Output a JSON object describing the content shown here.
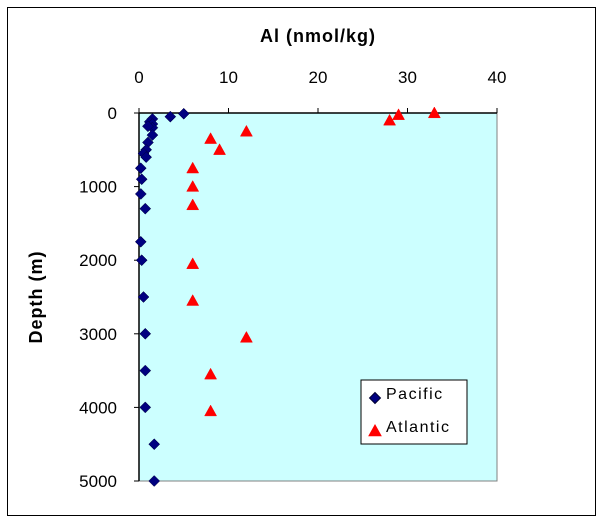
{
  "chart_data": {
    "type": "scatter",
    "title": "",
    "xlabel": "Al (nmol/kg)",
    "ylabel": "Depth (m)",
    "xlim": [
      0,
      40
    ],
    "ylim": [
      0,
      5000
    ],
    "y_inverted": true,
    "x_axis_position": "top",
    "x_ticks": [
      0,
      10,
      20,
      30,
      40
    ],
    "y_ticks": [
      0,
      1000,
      2000,
      3000,
      4000,
      5000
    ],
    "grid": false,
    "legend_position": "bottom-right",
    "plot_background": "#ccffff",
    "series": [
      {
        "name": "Pacific",
        "marker": "diamond",
        "color": "#000080",
        "points": [
          {
            "x": 5,
            "y": 10
          },
          {
            "x": 3.5,
            "y": 50
          },
          {
            "x": 1.5,
            "y": 80
          },
          {
            "x": 1.2,
            "y": 120
          },
          {
            "x": 1.5,
            "y": 150
          },
          {
            "x": 1.5,
            "y": 200
          },
          {
            "x": 1,
            "y": 180
          },
          {
            "x": 1.5,
            "y": 300
          },
          {
            "x": 1,
            "y": 400
          },
          {
            "x": 0.8,
            "y": 500
          },
          {
            "x": 0.5,
            "y": 550
          },
          {
            "x": 0.8,
            "y": 600
          },
          {
            "x": 0.2,
            "y": 750
          },
          {
            "x": 0.3,
            "y": 900
          },
          {
            "x": 0.2,
            "y": 1100
          },
          {
            "x": 0.7,
            "y": 1300
          },
          {
            "x": 0.2,
            "y": 1750
          },
          {
            "x": 0.3,
            "y": 2000
          },
          {
            "x": 0.5,
            "y": 2500
          },
          {
            "x": 0.7,
            "y": 3000
          },
          {
            "x": 0.7,
            "y": 3500
          },
          {
            "x": 0.7,
            "y": 4000
          },
          {
            "x": 1.7,
            "y": 4500
          },
          {
            "x": 1.7,
            "y": 5000
          }
        ]
      },
      {
        "name": "Atlantic",
        "marker": "triangle",
        "color": "#ff0000",
        "points": [
          {
            "x": 33,
            "y": 0
          },
          {
            "x": 29,
            "y": 25
          },
          {
            "x": 28,
            "y": 100
          },
          {
            "x": 12,
            "y": 250
          },
          {
            "x": 8,
            "y": 350
          },
          {
            "x": 9,
            "y": 500
          },
          {
            "x": 6,
            "y": 750
          },
          {
            "x": 6,
            "y": 1000
          },
          {
            "x": 6,
            "y": 1250
          },
          {
            "x": 6,
            "y": 2050
          },
          {
            "x": 6,
            "y": 2550
          },
          {
            "x": 12,
            "y": 3050
          },
          {
            "x": 8,
            "y": 3550
          },
          {
            "x": 8,
            "y": 4050
          }
        ]
      }
    ]
  }
}
